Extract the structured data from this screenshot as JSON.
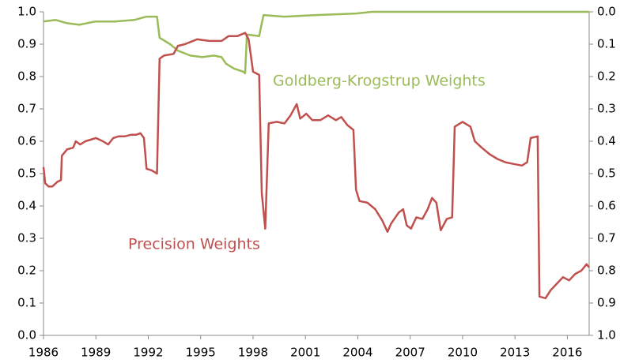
{
  "chart_data": {
    "type": "line",
    "annotations": [
      "Goldberg-Krogstrup Weights",
      "Precision Weights"
    ],
    "xlim": [
      1986,
      2017.25
    ],
    "xticks": [
      1986,
      1989,
      1992,
      1995,
      1998,
      2001,
      2004,
      2007,
      2010,
      2013,
      2016
    ],
    "ylim": [
      0,
      1
    ],
    "yticks": [
      {
        "value": 0,
        "label": "0.0"
      },
      0.1,
      0.2,
      0.3,
      0.4,
      0.5,
      0.6,
      0.7,
      0.8,
      0.9,
      {
        "value": 1,
        "label": "1.0"
      }
    ],
    "y2lim": [
      1,
      0
    ],
    "y2ticks": [
      {
        "value": 0,
        "label": "0.0"
      },
      0.1,
      0.2,
      0.3,
      0.4,
      0.5,
      0.6,
      0.7,
      0.8,
      0.9,
      {
        "value": 1,
        "label": "1.0"
      }
    ],
    "series": [
      {
        "name": "Precision Weights",
        "color": "#c0504d",
        "x": [
          1986.0,
          1986.1,
          1986.3,
          1986.5,
          1986.8,
          1987.0,
          1987.05,
          1987.35,
          1987.7,
          1987.85,
          1988.1,
          1988.4,
          1988.7,
          1989.0,
          1989.4,
          1989.7,
          1990.0,
          1990.3,
          1990.65,
          1991.0,
          1991.3,
          1991.55,
          1991.75,
          1991.9,
          1992.2,
          1992.5,
          1992.65,
          1992.9,
          1993.45,
          1993.7,
          1994.1,
          1994.8,
          1995.5,
          1996.2,
          1996.6,
          1997.1,
          1997.55,
          1997.75,
          1998.0,
          1998.35,
          1998.5,
          1998.7,
          1998.9,
          1999.35,
          1999.8,
          2000.15,
          2000.5,
          2000.7,
          2001.05,
          2001.4,
          2001.85,
          2002.3,
          2002.75,
          2003.05,
          2003.4,
          2003.75,
          2003.9,
          2004.1,
          2004.55,
          2005.0,
          2005.4,
          2005.7,
          2005.9,
          2006.35,
          2006.6,
          2006.8,
          2007.05,
          2007.35,
          2007.7,
          2008.0,
          2008.25,
          2008.5,
          2008.75,
          2009.1,
          2009.4,
          2009.55,
          2010.0,
          2010.45,
          2010.7,
          2011.1,
          2011.55,
          2012.0,
          2012.45,
          2012.9,
          2013.4,
          2013.7,
          2013.9,
          2014.3,
          2014.4,
          2014.75,
          2015.05,
          2015.4,
          2015.75,
          2016.1,
          2016.45,
          2016.8,
          2017.1,
          2017.25
        ],
        "values": [
          0.52,
          0.47,
          0.46,
          0.46,
          0.475,
          0.48,
          0.555,
          0.575,
          0.58,
          0.6,
          0.59,
          0.6,
          0.605,
          0.61,
          0.6,
          0.59,
          0.61,
          0.615,
          0.615,
          0.62,
          0.62,
          0.625,
          0.61,
          0.515,
          0.51,
          0.5,
          0.855,
          0.865,
          0.87,
          0.895,
          0.9,
          0.915,
          0.91,
          0.91,
          0.925,
          0.925,
          0.935,
          0.915,
          0.815,
          0.805,
          0.44,
          0.33,
          0.655,
          0.66,
          0.655,
          0.68,
          0.715,
          0.67,
          0.685,
          0.665,
          0.665,
          0.68,
          0.665,
          0.675,
          0.65,
          0.635,
          0.45,
          0.415,
          0.41,
          0.39,
          0.355,
          0.32,
          0.345,
          0.38,
          0.39,
          0.34,
          0.33,
          0.365,
          0.36,
          0.39,
          0.425,
          0.41,
          0.325,
          0.36,
          0.365,
          0.645,
          0.66,
          0.645,
          0.6,
          0.58,
          0.56,
          0.545,
          0.535,
          0.53,
          0.525,
          0.535,
          0.61,
          0.615,
          0.12,
          0.115,
          0.14,
          0.16,
          0.18,
          0.17,
          0.19,
          0.2,
          0.22,
          0.21
        ]
      },
      {
        "name": "Goldberg-Krogstrup Weights",
        "color": "#9bbb59",
        "x": [
          1986.0,
          1986.7,
          1987.35,
          1988.05,
          1988.95,
          1990.1,
          1991.2,
          1991.9,
          1992.5,
          1992.65,
          1993.25,
          1993.7,
          1994.4,
          1995.1,
          1995.75,
          1996.2,
          1996.45,
          1996.9,
          1997.45,
          1997.55,
          1997.65,
          1998.35,
          1998.6,
          1999.8,
          2001.6,
          2003.9,
          2004.8,
          2017.25
        ],
        "values": [
          0.97,
          0.975,
          0.965,
          0.96,
          0.97,
          0.97,
          0.975,
          0.985,
          0.985,
          0.92,
          0.9,
          0.88,
          0.865,
          0.86,
          0.865,
          0.86,
          0.84,
          0.825,
          0.815,
          0.81,
          0.93,
          0.925,
          0.99,
          0.985,
          0.99,
          0.995,
          1.0,
          1.0
        ]
      }
    ]
  }
}
